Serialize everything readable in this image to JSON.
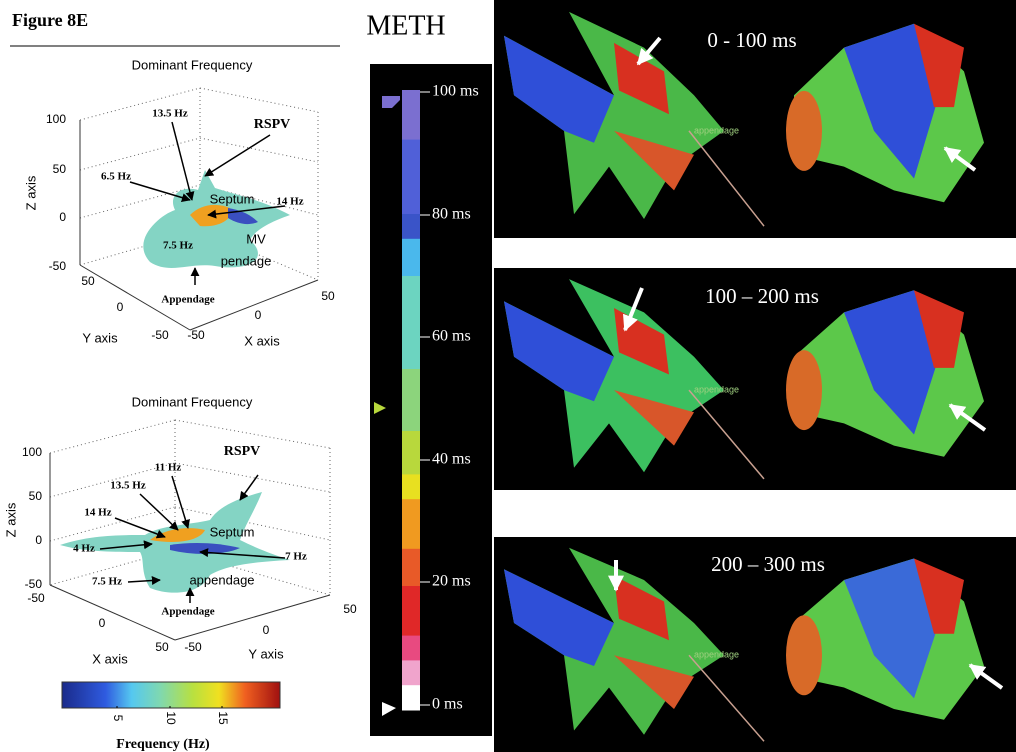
{
  "figure_label": "Figure 8E",
  "panels": [
    {
      "title": "Dominant Frequency",
      "z_label": "Z axis",
      "y_label": "Y axis",
      "x_label": "X axis",
      "z_ticks": [
        100,
        50,
        0,
        -50
      ],
      "y_ticks": [
        50,
        0,
        -50
      ],
      "x_ticks": [
        -50,
        0,
        50
      ],
      "annotations": [
        "13.5 Hz",
        "RSPV",
        "6.5 Hz",
        "Septum",
        "14 Hz",
        "7.5 Hz",
        "MV",
        "pendage",
        "Appendage"
      ]
    },
    {
      "title": "Dominant Frequency",
      "z_label": "Z axis",
      "x_label": "X axis",
      "y_label": "Y axis",
      "z_ticks": [
        100,
        50,
        0,
        -50
      ],
      "x_ticks": [
        -50,
        0,
        50
      ],
      "y_ticks": [
        50,
        0,
        -50
      ],
      "annotations": [
        "RSPV",
        "11 Hz",
        "13.5 Hz",
        "14 Hz",
        "Septum",
        "4 Hz",
        "7 Hz",
        "7.5 Hz",
        "appendage",
        "Appendage"
      ]
    }
  ],
  "frequency_colorbar": {
    "ticks": [
      5,
      10,
      15
    ],
    "label": "Frequency (Hz)"
  },
  "meth": {
    "title": "METH",
    "time_ticks": [
      "100 ms",
      "80 ms",
      "60 ms",
      "40 ms",
      "20 ms",
      "0 ms"
    ]
  },
  "maps": [
    {
      "label": "0 - 100 ms",
      "sublabel": "appendage"
    },
    {
      "label": "100 – 200 ms",
      "sublabel": "appendage"
    },
    {
      "label": "200 – 300 ms",
      "sublabel": "appendage"
    }
  ]
}
